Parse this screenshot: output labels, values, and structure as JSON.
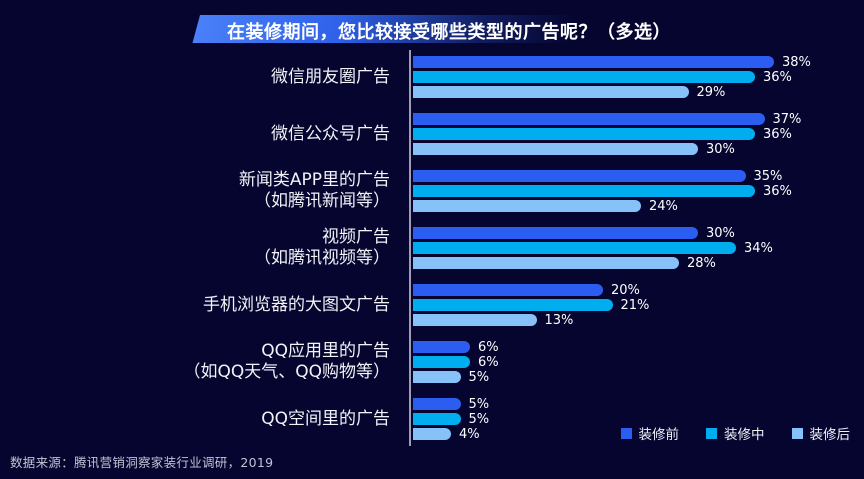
{
  "title": {
    "text": "在装修期间，您比较接受哪些类型的广告呢？（多选）"
  },
  "chart_data": {
    "type": "bar",
    "orientation": "horizontal",
    "unit": "%",
    "title": "在装修期间，您比较接受哪些类型的广告呢？（多选）",
    "categories": [
      "微信朋友圈广告",
      "微信公众号广告",
      "新闻类APP里的广告\n（如腾讯新闻等）",
      "视频广告\n（如腾讯视频等）",
      "手机浏览器的大图文广告",
      "QQ应用里的广告\n（如QQ天气、QQ购物等）",
      "QQ空间里的广告"
    ],
    "series": [
      {
        "name": "装修前",
        "color": "#2a5df0",
        "values": [
          38,
          37,
          35,
          30,
          20,
          6,
          5
        ]
      },
      {
        "name": "装修中",
        "color": "#00adef",
        "values": [
          36,
          36,
          36,
          34,
          21,
          6,
          5
        ]
      },
      {
        "name": "装修后",
        "color": "#86c1f7",
        "values": [
          29,
          30,
          24,
          28,
          13,
          5,
          4
        ]
      }
    ],
    "xlim": [
      0,
      40
    ],
    "value_labels": true,
    "grid": false,
    "legend_position": "bottom-right"
  },
  "footer": {
    "source": "数据来源：腾讯营销洞察家装行业调研，2019"
  },
  "colors": {
    "background": "#05052f",
    "axis": "#9d9db5",
    "title_gradient_start": "#4a80f8",
    "title_gradient_mid": "#2e61e8",
    "text": "#ffffff",
    "footer_text": "#c3c3d6"
  }
}
